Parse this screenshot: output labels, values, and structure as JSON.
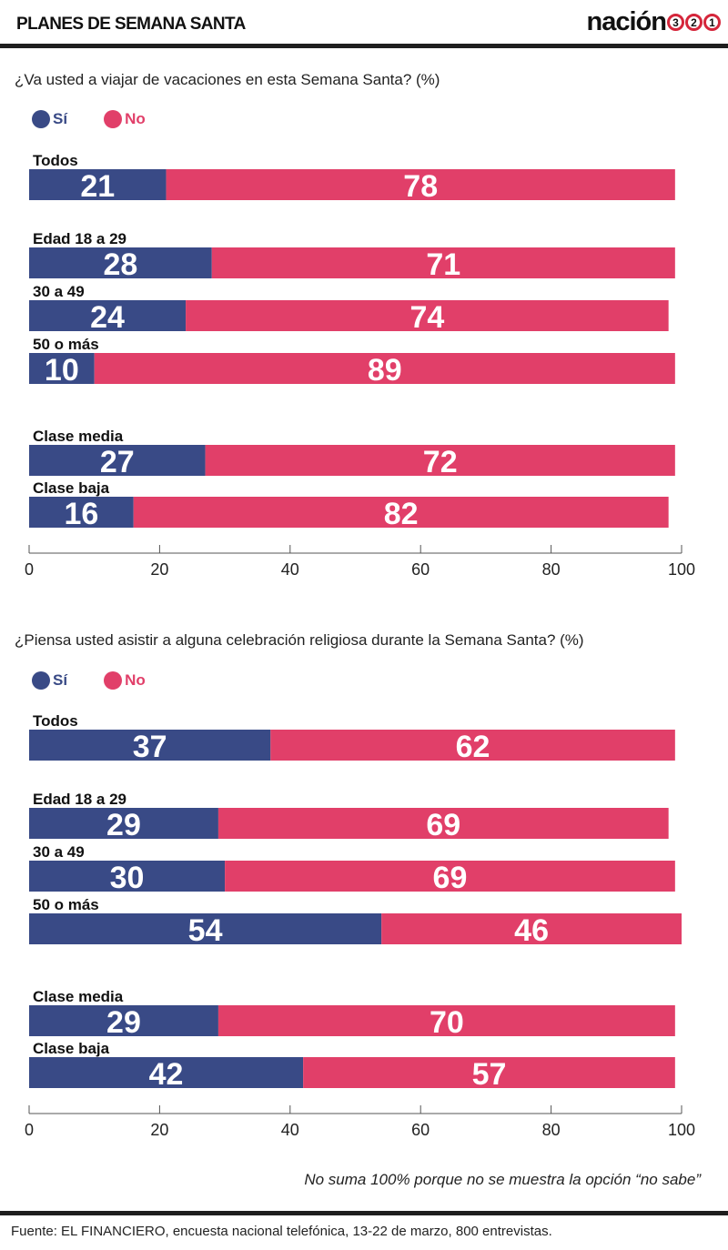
{
  "header": {
    "title": "PLANES DE SEMANA SANTA",
    "logo_word": "nación",
    "logo_numbers": [
      "3",
      "2",
      "1"
    ]
  },
  "colors": {
    "si": "#394a86",
    "no": "#e13f69",
    "axis": "#555555"
  },
  "legend": {
    "si_label": "Sí",
    "no_label": "No"
  },
  "chart_data": [
    {
      "type": "bar",
      "orientation": "horizontal",
      "stacked": true,
      "title": "¿Va usted a viajar de vacaciones en esta Semana Santa? (%)",
      "categories": [
        "Todos",
        "Edad 18 a 29",
        "30 a 49",
        "50 o más",
        "Clase media",
        "Clase baja"
      ],
      "groups": [
        [
          "Todos"
        ],
        [
          "Edad 18 a 29",
          "30 a 49",
          "50 o más"
        ],
        [
          "Clase media",
          "Clase baja"
        ]
      ],
      "series": [
        {
          "name": "Sí",
          "values": [
            21,
            28,
            24,
            10,
            27,
            16
          ]
        },
        {
          "name": "No",
          "values": [
            78,
            71,
            74,
            89,
            72,
            82
          ]
        }
      ],
      "xlim": [
        0,
        100
      ],
      "xticks": [
        0,
        20,
        40,
        60,
        80,
        100
      ],
      "legend_position": "top-left",
      "grid": false
    },
    {
      "type": "bar",
      "orientation": "horizontal",
      "stacked": true,
      "title": "¿Piensa usted asistir a alguna celebración religiosa durante la Semana Santa? (%)",
      "categories": [
        "Todos",
        "Edad 18 a 29",
        "30 a 49",
        "50 o más",
        "Clase media",
        "Clase baja"
      ],
      "groups": [
        [
          "Todos"
        ],
        [
          "Edad 18 a 29",
          "30 a 49",
          "50 o más"
        ],
        [
          "Clase media",
          "Clase baja"
        ]
      ],
      "series": [
        {
          "name": "Sí",
          "values": [
            37,
            29,
            30,
            54,
            29,
            42
          ]
        },
        {
          "name": "No",
          "values": [
            62,
            69,
            69,
            46,
            70,
            57
          ]
        }
      ],
      "xlim": [
        0,
        100
      ],
      "xticks": [
        0,
        20,
        40,
        60,
        80,
        100
      ],
      "legend_position": "top-left",
      "grid": false
    }
  ],
  "footer": {
    "note": "No suma 100% porque no se muestra la opción “no sabe”",
    "source": "Fuente: EL FINANCIERO, encuesta nacional telefónica, 13-22 de marzo, 800 entrevistas."
  }
}
